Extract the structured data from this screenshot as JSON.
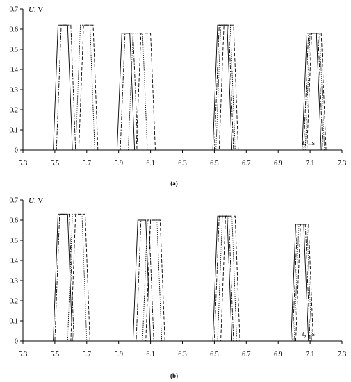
{
  "chart_data": [
    {
      "type": "line",
      "panel_caption": "(a)",
      "ylabel": "U, V",
      "xlabel": "t, ns",
      "xlim": [
        5.3,
        7.3
      ],
      "ylim": [
        0,
        0.7
      ],
      "x_ticks": [
        "5.3",
        "5.5",
        "5.7",
        "5.9",
        "6.1",
        "6.3",
        "6.5",
        "6.7",
        "6.9",
        "7.1",
        "7.3"
      ],
      "y_ticks": [
        "0",
        "0.1",
        "0.2",
        "0.3",
        "0.4",
        "0.5",
        "0.6",
        "0.7"
      ],
      "grid": false,
      "series": [
        {
          "style": "solid",
          "x": [
            5.3,
            5.49,
            5.52,
            5.58,
            5.61,
            5.89,
            5.92,
            5.97,
            6.0,
            6.49,
            6.52,
            6.58,
            6.61,
            7.05,
            7.08,
            7.14,
            7.17,
            7.3
          ],
          "y": [
            0,
            0,
            0.62,
            0.62,
            0,
            0,
            0.58,
            0.58,
            0,
            0,
            0.62,
            0.62,
            0,
            0,
            0.58,
            0.58,
            0,
            0
          ]
        },
        {
          "style": "dashdot",
          "x": [
            5.3,
            5.51,
            5.54,
            5.6,
            5.63,
            5.91,
            5.94,
            5.99,
            6.02,
            6.5,
            6.53,
            6.59,
            6.62,
            7.06,
            7.09,
            7.15,
            7.18,
            7.3
          ],
          "y": [
            0,
            0,
            0.62,
            0.62,
            0,
            0,
            0.58,
            0.58,
            0,
            0,
            0.62,
            0.62,
            0,
            0,
            0.58,
            0.58,
            0,
            0
          ]
        },
        {
          "style": "dotted",
          "x": [
            5.3,
            5.63,
            5.66,
            5.72,
            5.75,
            5.96,
            5.99,
            6.05,
            6.08,
            6.51,
            6.54,
            6.6,
            6.63,
            7.07,
            7.1,
            7.16,
            7.19,
            7.3
          ],
          "y": [
            0,
            0,
            0.62,
            0.62,
            0,
            0,
            0.58,
            0.58,
            0,
            0,
            0.62,
            0.62,
            0,
            0,
            0.58,
            0.58,
            0,
            0
          ]
        },
        {
          "style": "dashed",
          "x": [
            5.3,
            5.65,
            5.68,
            5.74,
            5.77,
            6.01,
            6.04,
            6.1,
            6.13,
            6.53,
            6.56,
            6.62,
            6.65,
            7.08,
            7.11,
            7.17,
            7.2,
            7.3
          ],
          "y": [
            0,
            0,
            0.62,
            0.62,
            0,
            0,
            0.58,
            0.58,
            0,
            0,
            0.62,
            0.62,
            0,
            0,
            0.58,
            0.58,
            0,
            0
          ]
        }
      ]
    },
    {
      "type": "line",
      "panel_caption": "(b)",
      "ylabel": "U, V",
      "xlabel": "t, ns",
      "xlim": [
        5.3,
        7.3
      ],
      "ylim": [
        0,
        0.7
      ],
      "x_ticks": [
        "5.3",
        "5.5",
        "5.7",
        "5.9",
        "6.1",
        "6.3",
        "6.5",
        "6.7",
        "6.9",
        "7.1",
        "7.3"
      ],
      "y_ticks": [
        "0",
        "0.1",
        "0.2",
        "0.3",
        "0.4",
        "0.5",
        "0.6",
        "0.7"
      ],
      "grid": false,
      "series": [
        {
          "style": "solid",
          "x": [
            5.3,
            5.49,
            5.52,
            5.58,
            5.61,
            5.99,
            6.02,
            6.07,
            6.1,
            6.49,
            6.52,
            6.58,
            6.61,
            6.98,
            7.01,
            7.06,
            7.09,
            7.3
          ],
          "y": [
            0,
            0,
            0.63,
            0.63,
            0,
            0,
            0.6,
            0.6,
            0,
            0,
            0.62,
            0.62,
            0,
            0,
            0.58,
            0.58,
            0,
            0
          ]
        },
        {
          "style": "dashdot",
          "x": [
            5.3,
            5.5,
            5.53,
            5.59,
            5.62,
            6.01,
            6.04,
            6.09,
            6.12,
            6.5,
            6.53,
            6.59,
            6.62,
            6.99,
            7.02,
            7.07,
            7.1,
            7.3
          ],
          "y": [
            0,
            0,
            0.63,
            0.63,
            0,
            0,
            0.6,
            0.6,
            0,
            0,
            0.62,
            0.62,
            0,
            0,
            0.58,
            0.58,
            0,
            0
          ]
        },
        {
          "style": "dotted",
          "x": [
            5.3,
            5.58,
            5.61,
            5.67,
            5.7,
            6.05,
            6.08,
            6.14,
            6.17,
            6.52,
            6.55,
            6.61,
            6.64,
            7.0,
            7.03,
            7.08,
            7.11,
            7.3
          ],
          "y": [
            0,
            0,
            0.63,
            0.63,
            0,
            0,
            0.6,
            0.6,
            0,
            0,
            0.62,
            0.62,
            0,
            0,
            0.58,
            0.58,
            0,
            0
          ]
        },
        {
          "style": "dashed",
          "x": [
            5.3,
            5.6,
            5.63,
            5.69,
            5.72,
            6.07,
            6.1,
            6.16,
            6.19,
            6.54,
            6.57,
            6.63,
            6.66,
            7.01,
            7.04,
            7.09,
            7.12,
            7.3
          ],
          "y": [
            0,
            0,
            0.63,
            0.63,
            0,
            0,
            0.6,
            0.6,
            0,
            0,
            0.62,
            0.62,
            0,
            0,
            0.58,
            0.58,
            0,
            0
          ]
        }
      ]
    }
  ]
}
